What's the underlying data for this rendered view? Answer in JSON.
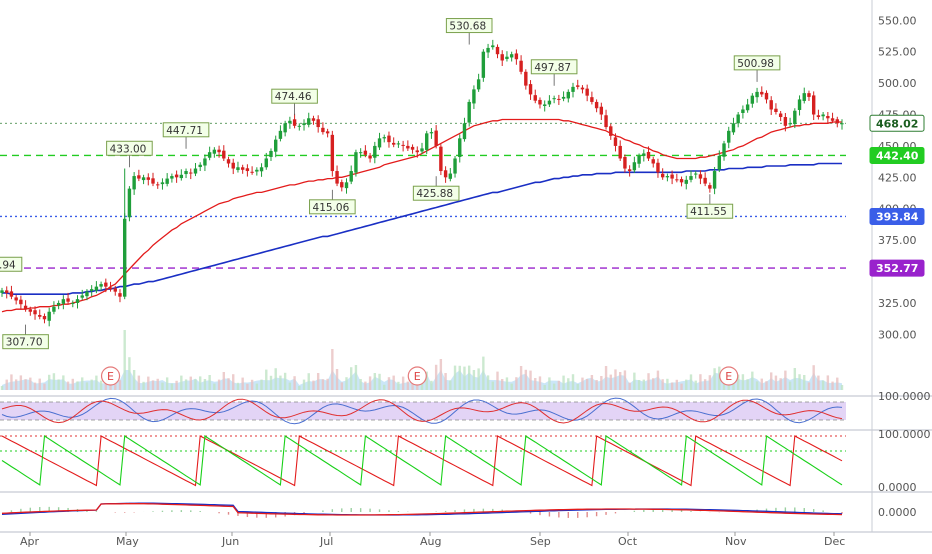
{
  "chart_data": {
    "type": "candlestick",
    "x_axis": {
      "months": [
        "Apr",
        "May",
        "Jun",
        "Jul",
        "Aug",
        "Sep",
        "Oct",
        "Nov",
        "Dec"
      ]
    },
    "price_axis": {
      "range": [
        278,
        555
      ],
      "ticks": [
        "550.00",
        "525.00",
        "500.00",
        "475.00",
        "450.00",
        "425.00",
        "400.00",
        "375.00",
        "350.00",
        "325.00",
        "300.00"
      ]
    },
    "price_series": {
      "close": [
        335,
        333,
        330,
        327,
        324,
        320,
        318,
        316,
        314,
        312,
        318,
        322,
        325,
        328,
        326,
        325,
        328,
        331,
        334,
        336,
        338,
        340,
        338,
        336,
        334,
        330,
        392,
        416,
        426,
        424,
        425,
        423,
        420,
        419,
        421,
        424,
        426,
        425,
        427,
        430,
        428,
        432,
        435,
        440,
        445,
        447,
        445,
        440,
        436,
        432,
        433,
        431,
        430,
        429,
        431,
        433,
        440,
        446,
        455,
        462,
        468,
        470,
        466,
        466,
        468,
        472,
        470,
        465,
        461,
        460,
        430,
        420,
        417,
        421,
        430,
        445,
        445,
        443,
        440,
        450,
        456,
        457,
        453,
        451,
        452,
        450,
        448,
        447,
        445,
        448,
        460,
        461,
        450,
        430,
        425,
        428,
        440,
        456,
        468,
        485,
        495,
        503,
        525,
        528,
        530,
        523,
        518,
        521,
        523,
        519,
        509,
        498,
        491,
        486,
        483,
        483,
        486,
        488,
        487,
        489,
        493,
        497,
        497,
        495,
        490,
        485,
        480,
        475,
        465,
        458,
        450,
        440,
        432,
        430,
        437,
        442,
        444,
        440,
        436,
        429,
        425,
        426,
        424,
        423,
        421,
        423,
        426,
        428,
        424,
        420,
        416,
        430,
        442,
        452,
        462,
        468,
        475,
        479,
        483,
        490,
        493,
        491,
        487,
        479,
        477,
        473,
        466,
        468,
        478,
        487,
        492,
        489,
        475,
        473,
        475,
        472,
        470,
        468,
        468
      ],
      "ma_red": [
        318,
        319,
        319,
        320,
        320,
        320,
        321,
        321,
        322,
        322,
        322,
        323,
        323,
        324,
        324,
        325,
        326,
        327,
        328,
        330,
        331,
        333,
        335,
        338,
        340,
        344,
        348,
        352,
        356,
        360,
        364,
        367,
        371,
        374,
        377,
        380,
        383,
        385,
        388,
        390,
        392,
        394,
        396,
        398,
        400,
        402,
        404,
        405,
        406,
        408,
        409,
        410,
        411,
        412,
        413,
        413,
        414,
        415,
        416,
        417,
        418,
        419,
        419,
        420,
        421,
        422,
        422,
        423,
        423,
        424,
        424,
        425,
        425,
        426,
        427,
        428,
        429,
        430,
        431,
        432,
        433,
        435,
        436,
        437,
        438,
        439,
        440,
        441,
        442,
        444,
        446,
        448,
        450,
        452,
        454,
        456,
        458,
        460,
        462,
        464,
        466,
        467,
        468,
        469,
        470,
        470,
        471,
        471,
        471,
        471,
        471,
        471,
        471,
        471,
        471,
        471,
        471,
        471,
        471,
        470,
        470,
        469,
        468,
        467,
        466,
        465,
        464,
        463,
        462,
        460,
        458,
        457,
        455,
        454,
        452,
        451,
        449,
        448,
        446,
        445,
        443,
        442,
        441,
        440,
        440,
        440,
        440,
        440,
        441,
        441,
        442,
        443,
        444,
        445,
        446,
        447,
        449,
        450,
        452,
        454,
        456,
        457,
        459,
        461,
        462,
        463,
        464,
        465,
        466,
        466,
        467,
        467,
        468,
        468,
        468,
        468,
        469,
        469,
        469
      ],
      "ma_blue": [
        333,
        333,
        332,
        332,
        332,
        332,
        332,
        332,
        332,
        332,
        332,
        332,
        332,
        332,
        332,
        333,
        333,
        333,
        334,
        334,
        335,
        335,
        336,
        336,
        337,
        338,
        338,
        339,
        340,
        340,
        341,
        342,
        342,
        343,
        344,
        345,
        346,
        347,
        348,
        349,
        350,
        351,
        352,
        353,
        354,
        355,
        356,
        357,
        358,
        359,
        360,
        361,
        362,
        363,
        364,
        365,
        366,
        367,
        368,
        369,
        370,
        371,
        372,
        373,
        374,
        375,
        376,
        377,
        378,
        378,
        379,
        380,
        381,
        382,
        383,
        384,
        385,
        386,
        387,
        388,
        389,
        390,
        391,
        392,
        393,
        394,
        395,
        396,
        397,
        398,
        399,
        400,
        401,
        402,
        403,
        404,
        405,
        406,
        407,
        408,
        409,
        410,
        411,
        412,
        413,
        413,
        414,
        415,
        416,
        417,
        418,
        419,
        420,
        421,
        421,
        422,
        423,
        424,
        424,
        425,
        425,
        426,
        426,
        427,
        427,
        427,
        428,
        428,
        428,
        428,
        429,
        429,
        429,
        429,
        429,
        429,
        429,
        429,
        429,
        429,
        429,
        429,
        429,
        429,
        429,
        430,
        430,
        430,
        430,
        430,
        431,
        431,
        431,
        431,
        432,
        432,
        432,
        432,
        433,
        433,
        433,
        433,
        434,
        434,
        434,
        434,
        434,
        435,
        435,
        435,
        435,
        435,
        435,
        436,
        436,
        436,
        436,
        436,
        436
      ]
    },
    "horizontal_levels": [
      {
        "value": 442.4,
        "label": "442.40",
        "style": "dashed",
        "color": "#22cc22"
      },
      {
        "value": 393.84,
        "label": "393.84",
        "style": "dotted",
        "color": "#3a5ee8"
      },
      {
        "value": 352.77,
        "label": "352.77",
        "style": "dashed",
        "color": "#9922cc"
      },
      {
        "value": 468.02,
        "label": "468.02",
        "style": "dotted",
        "color": "#2e7d32",
        "current": true
      }
    ],
    "annotations": [
      {
        "text": "530.68",
        "index": 99,
        "price": 530.68,
        "pos": "above"
      },
      {
        "text": "497.87",
        "index": 117,
        "price": 497.87,
        "pos": "above"
      },
      {
        "text": "500.98",
        "index": 160,
        "price": 500.98,
        "pos": "above"
      },
      {
        "text": "474.46",
        "index": 62,
        "price": 474.46,
        "pos": "above"
      },
      {
        "text": "447.71",
        "index": 39,
        "price": 447.71,
        "pos": "above"
      },
      {
        "text": "433.00",
        "index": 27,
        "price": 433.0,
        "pos": "above"
      },
      {
        "text": "415.06",
        "index": 70,
        "price": 415.06,
        "pos": "below"
      },
      {
        "text": "425.88",
        "index": 92,
        "price": 425.88,
        "pos": "below"
      },
      {
        "text": "411.55",
        "index": 150,
        "price": 411.55,
        "pos": "below"
      },
      {
        "text": "307.70",
        "index": 5,
        "price": 307.7,
        "pos": "below"
      },
      {
        "text": ".94",
        "index": 0,
        "price": 355.0,
        "pos": "left"
      }
    ],
    "earnings_markers": [
      {
        "text": "E",
        "index": 23
      },
      {
        "text": "E",
        "index": 88
      },
      {
        "text": "E",
        "index": 154
      }
    ],
    "indicator_axes": {
      "stoch_tick": "100.0000",
      "aroon_ticks": [
        "100.0000",
        "0.0000"
      ],
      "macd_tick": "0.0000"
    }
  }
}
